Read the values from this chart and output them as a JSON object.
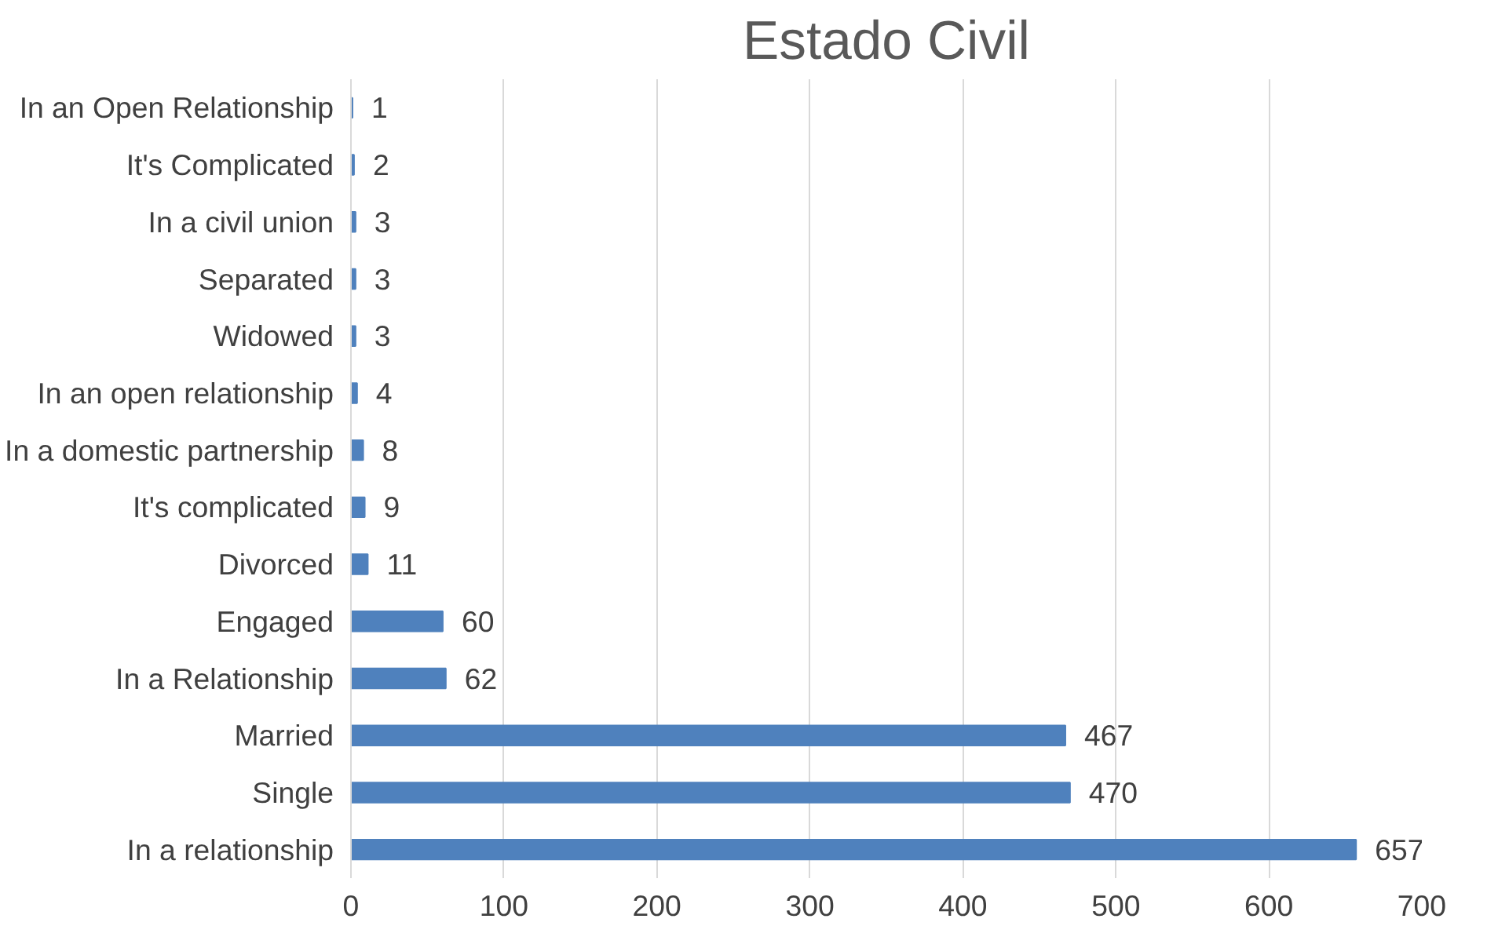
{
  "chart_data": {
    "type": "bar",
    "orientation": "horizontal",
    "title": "Estado Civil",
    "categories": [
      "In an Open Relationship",
      "It's Complicated",
      "In a civil union",
      "Separated",
      "Widowed",
      "In an open relationship",
      "In a domestic partnership",
      "It's complicated",
      "Divorced",
      "Engaged",
      "In a Relationship",
      "Married",
      "Single",
      "In a relationship"
    ],
    "values": [
      1,
      2,
      3,
      3,
      3,
      4,
      8,
      9,
      11,
      60,
      62,
      467,
      470,
      657
    ],
    "color": "#4f81bd",
    "xlim": [
      0,
      700
    ],
    "xticks": [
      0,
      100,
      200,
      300,
      400,
      500,
      600,
      700
    ],
    "grid": "x",
    "data_labels": true
  }
}
